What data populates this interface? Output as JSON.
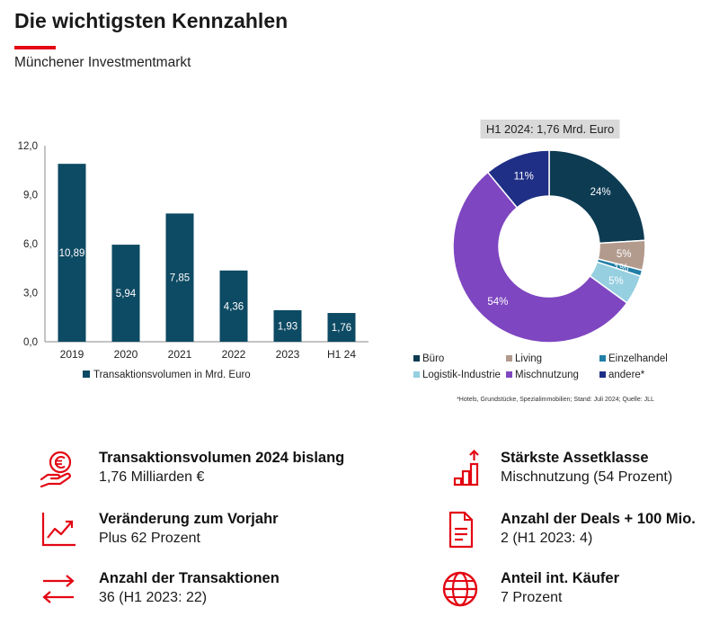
{
  "header": {
    "title": "Die wichtigsten Kennzahlen",
    "subtitle": "Münchener Investmentmarkt"
  },
  "colors": {
    "accent": "#e30613",
    "bar": "#0d4a63"
  },
  "chart_data": [
    {
      "type": "bar",
      "categories": [
        "2019",
        "2020",
        "2021",
        "2022",
        "2023",
        "H1 24"
      ],
      "series": [
        {
          "name": "Transaktionsvolumen in Mrd. Euro",
          "values": [
            10.89,
            5.94,
            7.85,
            4.36,
            1.93,
            1.76
          ]
        }
      ],
      "value_labels": [
        "10,89",
        "5,94",
        "7,85",
        "4,36",
        "1,93",
        "1,76"
      ],
      "ylim": [
        0,
        12
      ],
      "yticks": [
        "0,0",
        "3,0",
        "6,0",
        "9,0",
        "12,0"
      ],
      "legend_position": "bottom",
      "grid": false
    },
    {
      "type": "pie",
      "donut": true,
      "title": "H1 2024: 1,76 Mrd. Euro",
      "labels": [
        "Büro",
        "Living",
        "Einzelhandel",
        "Logistik-Industrie",
        "Mischnutzung",
        "andere*"
      ],
      "values": [
        24,
        5,
        1,
        5,
        54,
        11
      ],
      "value_labels": [
        "24%",
        "5%",
        "1%",
        "5%",
        "54%",
        "11%"
      ],
      "colors": [
        "#0c3b52",
        "#b29a8d",
        "#1f7fa6",
        "#95cfe0",
        "#7e46c0",
        "#1f2f86"
      ],
      "legend_position": "bottom",
      "footnote": "*Hotels, Grundstücke, Spezialimmobilien; Stand: Juli 2024; Quelle: JLL"
    }
  ],
  "kpis": [
    {
      "icon": "euro-hand-icon",
      "title": "Transaktionsvolumen 2024 bislang",
      "value": "1,76 Milliarden €"
    },
    {
      "icon": "trend-chart-icon",
      "title": "Veränderung zum Vorjahr",
      "value": "Plus 62 Prozent"
    },
    {
      "icon": "exchange-arrows-icon",
      "title": "Anzahl der Transaktionen",
      "value": "36 (H1 2023: 22)"
    },
    {
      "icon": "growth-bars-icon",
      "title": "Stärkste Assetklasse",
      "value": "Mischnutzung (54 Prozent)"
    },
    {
      "icon": "document-icon",
      "title": "Anzahl der Deals + 100 Mio.",
      "value": "2 (H1 2023: 4)"
    },
    {
      "icon": "globe-icon",
      "title": "Anteil int. Käufer",
      "value": "7 Prozent"
    }
  ]
}
